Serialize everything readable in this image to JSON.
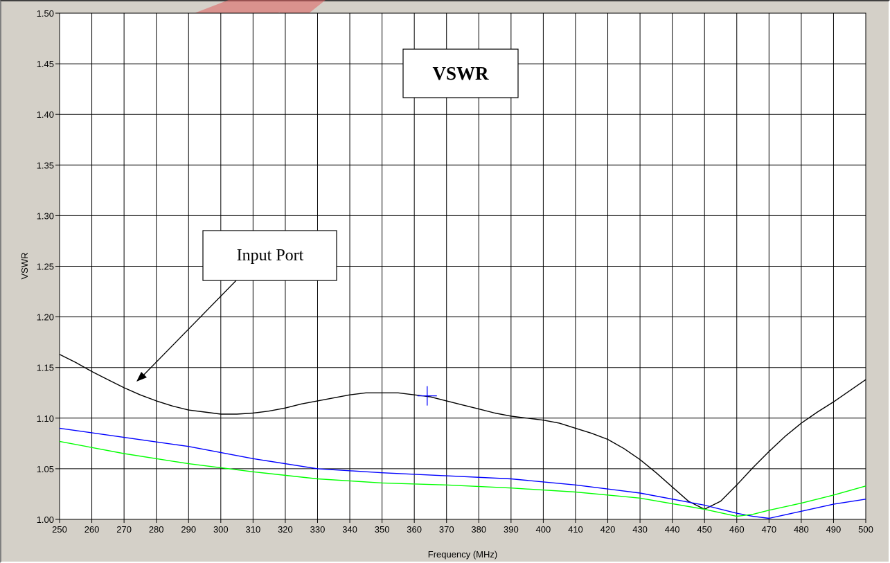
{
  "chart_data": {
    "type": "line",
    "title": "VSWR",
    "xlabel": "Frequency (MHz)",
    "ylabel": "VSWR",
    "xlim": [
      250,
      500
    ],
    "ylim": [
      1.0,
      1.5
    ],
    "x_ticks": [
      "250",
      "260",
      "270",
      "280",
      "290",
      "300",
      "310",
      "320",
      "330",
      "340",
      "350",
      "360",
      "370",
      "380",
      "390",
      "400",
      "410",
      "420",
      "430",
      "440",
      "450",
      "460",
      "470",
      "480",
      "490",
      "500"
    ],
    "y_ticks": [
      "1.00",
      "1.05",
      "1.10",
      "1.15",
      "1.20",
      "1.25",
      "1.30",
      "1.35",
      "1.40",
      "1.45",
      "1.50"
    ],
    "grid": true,
    "series": [
      {
        "color": "#000000",
        "x": [
          250,
          255,
          260,
          265,
          270,
          275,
          280,
          285,
          290,
          295,
          300,
          305,
          310,
          315,
          320,
          325,
          330,
          335,
          340,
          345,
          350,
          355,
          360,
          365,
          370,
          375,
          380,
          385,
          390,
          395,
          400,
          405,
          410,
          415,
          420,
          425,
          430,
          435,
          440,
          445,
          450,
          455,
          460,
          465,
          470,
          475,
          480,
          485,
          490,
          495,
          500
        ],
        "y": [
          1.163,
          1.155,
          1.146,
          1.138,
          1.13,
          1.123,
          1.117,
          1.112,
          1.108,
          1.106,
          1.104,
          1.104,
          1.105,
          1.107,
          1.11,
          1.114,
          1.117,
          1.12,
          1.123,
          1.125,
          1.125,
          1.125,
          1.123,
          1.121,
          1.117,
          1.113,
          1.109,
          1.105,
          1.102,
          1.1,
          1.098,
          1.095,
          1.09,
          1.085,
          1.079,
          1.07,
          1.059,
          1.046,
          1.032,
          1.018,
          1.01,
          1.018,
          1.034,
          1.051,
          1.067,
          1.082,
          1.095,
          1.106,
          1.116,
          1.127,
          1.138
        ]
      },
      {
        "color": "#0000ff",
        "x": [
          250,
          270,
          290,
          310,
          330,
          350,
          370,
          390,
          410,
          430,
          450,
          460,
          465,
          470,
          480,
          490,
          500
        ],
        "y": [
          1.09,
          1.081,
          1.072,
          1.06,
          1.05,
          1.046,
          1.043,
          1.04,
          1.034,
          1.026,
          1.014,
          1.006,
          1.003,
          1.001,
          1.008,
          1.015,
          1.02
        ]
      },
      {
        "color": "#00ff00",
        "x": [
          250,
          270,
          290,
          310,
          330,
          350,
          370,
          390,
          410,
          430,
          450,
          460,
          465,
          470,
          480,
          490,
          500
        ],
        "y": [
          1.077,
          1.065,
          1.055,
          1.047,
          1.04,
          1.036,
          1.034,
          1.031,
          1.027,
          1.021,
          1.01,
          1.003,
          1.005,
          1.009,
          1.016,
          1.024,
          1.033
        ]
      }
    ],
    "annotations": [
      {
        "text": "Input Port",
        "arrow_to": [
          273,
          1.139
        ]
      }
    ],
    "cursor": {
      "x": 364,
      "y": 1.122,
      "color": "#0000ff"
    }
  }
}
